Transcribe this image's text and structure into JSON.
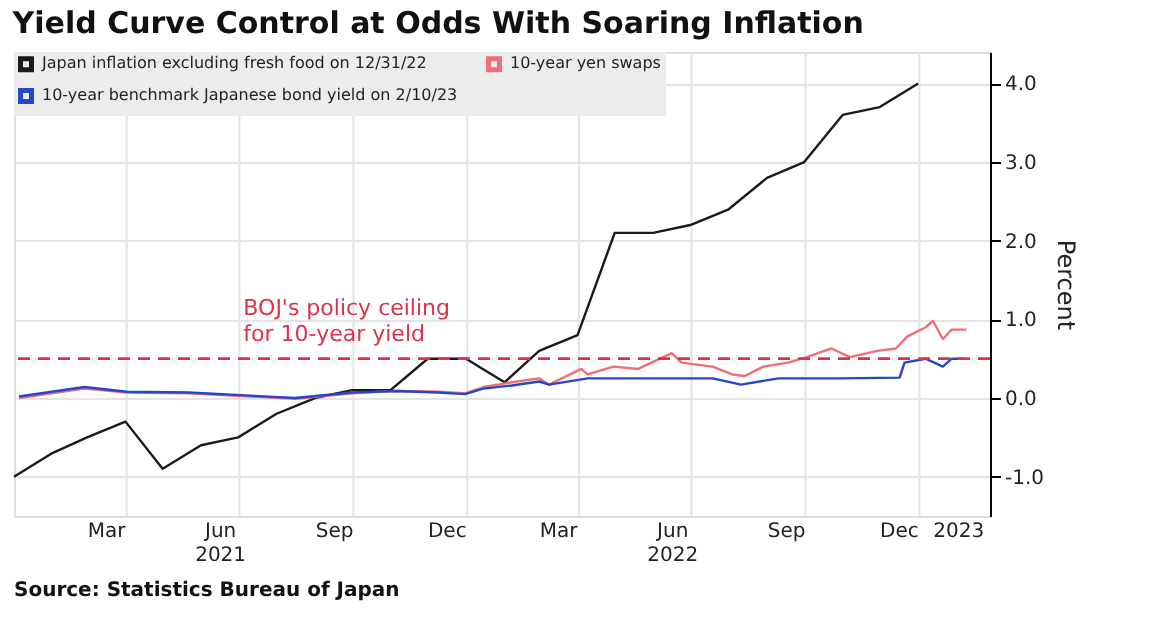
{
  "chart_data": {
    "type": "line",
    "title": "Yield Curve Control at Odds With Soaring Inflation",
    "ylabel": "Percent",
    "xlim": [
      "2020-12-31",
      "2023-02-27"
    ],
    "xticks": [
      {
        "value": "2021-03-15",
        "label": "Mar"
      },
      {
        "value": "2021-04-01",
        "label": null
      },
      {
        "value": "2021-06-15",
        "label": "Jun\n2021"
      },
      {
        "value": "2021-07-01",
        "label": null
      },
      {
        "value": "2021-09-15",
        "label": "Sep"
      },
      {
        "value": "2021-10-01",
        "label": null
      },
      {
        "value": "2021-12-15",
        "label": "Dec"
      },
      {
        "value": "2022-01-01",
        "label": null
      },
      {
        "value": "2022-03-15",
        "label": "Mar"
      },
      {
        "value": "2022-04-01",
        "label": null
      },
      {
        "value": "2022-06-15",
        "label": "Jun\n2022"
      },
      {
        "value": "2022-07-01",
        "label": null
      },
      {
        "value": "2022-09-15",
        "label": "Sep"
      },
      {
        "value": "2022-10-01",
        "label": null
      },
      {
        "value": "2022-12-15",
        "label": "Dec"
      },
      {
        "value": "2023-01-01",
        "label": null
      },
      {
        "value": "2023-02-01",
        "label": "2023"
      }
    ],
    "ylim": [
      -1.5,
      4.4
    ],
    "yticks": [
      {
        "value": -1,
        "label": "-1.0"
      },
      {
        "value": 0,
        "label": "0.0"
      },
      {
        "value": 1,
        "label": "1.0"
      },
      {
        "value": 2,
        "label": "2.0"
      },
      {
        "value": 3,
        "label": "3.0"
      },
      {
        "value": 4,
        "label": "4.0"
      }
    ],
    "grid": true,
    "legend": "top left",
    "series": [
      {
        "name": "Japan inflation excluding fresh food on 12/31/22",
        "color": "#1a1a1a",
        "x": [
          "2020-12-31",
          "2021-01-31",
          "2021-02-28",
          "2021-03-31",
          "2021-04-30",
          "2021-05-31",
          "2021-06-30",
          "2021-07-31",
          "2021-08-31",
          "2021-09-30",
          "2021-10-31",
          "2021-11-30",
          "2021-12-31",
          "2022-01-31",
          "2022-02-28",
          "2022-03-31",
          "2022-04-30",
          "2022-05-31",
          "2022-06-30",
          "2022-07-31",
          "2022-08-31",
          "2022-09-30",
          "2022-10-31",
          "2022-11-30",
          "2022-12-31"
        ],
        "values": [
          -1.0,
          -0.7,
          -0.5,
          -0.3,
          -0.9,
          -0.6,
          -0.5,
          -0.2,
          0.0,
          0.1,
          0.1,
          0.5,
          0.5,
          0.2,
          0.6,
          0.8,
          2.1,
          2.1,
          2.2,
          2.4,
          2.8,
          3.0,
          3.6,
          3.7,
          4.0
        ]
      },
      {
        "name": "10-year yen swaps",
        "color": "#ee6f76",
        "x": [
          "2021-01-04",
          "2021-02-26",
          "2021-04-01",
          "2021-05-21",
          "2021-07-10",
          "2021-08-15",
          "2021-09-30",
          "2021-11-04",
          "2021-12-08",
          "2021-12-30",
          "2022-01-14",
          "2022-02-06",
          "2022-02-28",
          "2022-03-08",
          "2022-04-03",
          "2022-04-08",
          "2022-04-29",
          "2022-05-19",
          "2022-06-15",
          "2022-06-23",
          "2022-07-18",
          "2022-08-03",
          "2022-08-13",
          "2022-08-28",
          "2022-09-17",
          "2022-10-02",
          "2022-10-22",
          "2022-11-06",
          "2022-11-28",
          "2022-12-13",
          "2022-12-22",
          "2023-01-06",
          "2023-01-12",
          "2023-01-20",
          "2023-01-27",
          "2023-02-08"
        ],
        "values": [
          0.0,
          0.12,
          0.07,
          0.06,
          0.02,
          -0.01,
          0.06,
          0.09,
          0.08,
          0.06,
          0.14,
          0.2,
          0.25,
          0.17,
          0.37,
          0.3,
          0.4,
          0.37,
          0.57,
          0.45,
          0.4,
          0.3,
          0.28,
          0.4,
          0.45,
          0.52,
          0.63,
          0.52,
          0.6,
          0.63,
          0.78,
          0.9,
          0.98,
          0.75,
          0.87,
          0.87
        ]
      },
      {
        "name": "10-year benchmark Japanese bond yield on 2/10/23",
        "color": "#2646c8",
        "x": [
          "2021-01-04",
          "2021-02-26",
          "2021-04-01",
          "2021-05-21",
          "2021-07-10",
          "2021-08-15",
          "2021-09-30",
          "2021-11-04",
          "2021-12-08",
          "2021-12-30",
          "2022-01-14",
          "2022-02-06",
          "2022-02-28",
          "2022-03-08",
          "2022-04-08",
          "2022-05-29",
          "2022-07-18",
          "2022-08-10",
          "2022-09-09",
          "2022-10-28",
          "2022-12-16",
          "2022-12-20",
          "2023-01-06",
          "2023-01-20",
          "2023-01-27",
          "2023-02-06"
        ],
        "values": [
          0.02,
          0.14,
          0.08,
          0.07,
          0.03,
          0.0,
          0.07,
          0.09,
          0.07,
          0.05,
          0.12,
          0.16,
          0.21,
          0.17,
          0.25,
          0.25,
          0.25,
          0.17,
          0.25,
          0.25,
          0.26,
          0.45,
          0.5,
          0.4,
          0.5,
          0.5
        ]
      }
    ],
    "ref_lines": [
      {
        "axis": "y",
        "value": 0.5,
        "label": "BOJ's policy ceiling\nfor 10-year yield",
        "color": "#e0314b",
        "line_style": "dashed"
      }
    ],
    "annotations": [
      "Source: Statistics Bureau of Japan"
    ]
  }
}
